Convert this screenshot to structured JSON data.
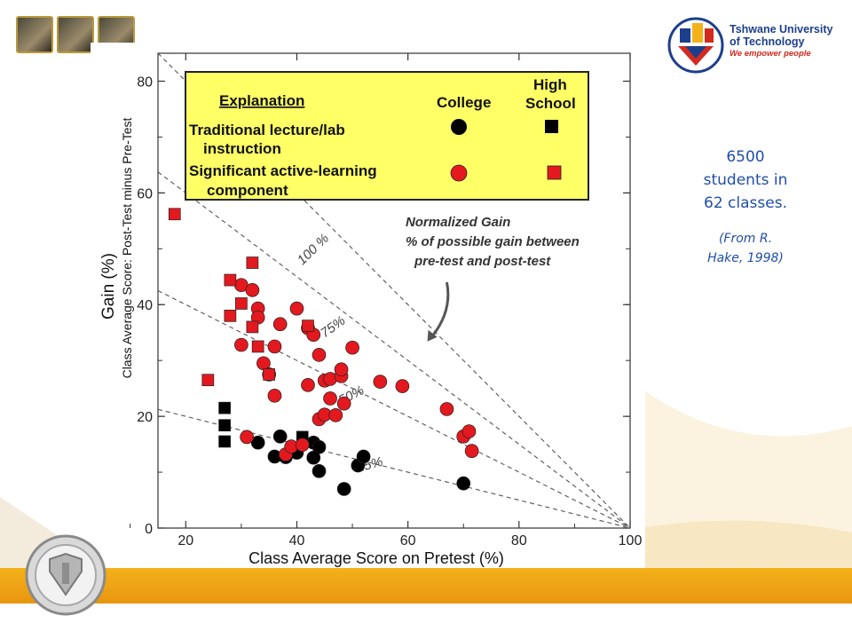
{
  "slide": {
    "logo": {
      "line1": "Tshwane University",
      "line2": "of Technology",
      "tagline": "We empower people"
    },
    "side_note": {
      "line1": "6500",
      "line2": "students in",
      "line3": "62 classes.",
      "cite1": "(From R.",
      "cite2": "Hake, 1998)"
    },
    "colors": {
      "brand_blue": "#1f4fa8",
      "footer_gold": "#f4b21a",
      "legend_bg": "#ffff66",
      "series_red": "#e3191f",
      "series_black": "#000000"
    }
  },
  "chart_data": {
    "type": "scatter",
    "xlabel": "Class Average Score on Pretest (%)",
    "ylabel": "Gain (%)",
    "ylabel2": "Class Average Score: Post-Test minus Pre-Test",
    "xlim": [
      15,
      100
    ],
    "ylim": [
      0,
      85
    ],
    "xticks": [
      20,
      40,
      60,
      80,
      100
    ],
    "yticks": [
      0,
      20,
      40,
      60,
      80
    ],
    "legend": {
      "title": "Explanation",
      "col_college": "College",
      "col_hs1": "High",
      "col_hs2": "School",
      "row1a": "Traditional lecture/lab",
      "row1b": "instruction",
      "row2a": "Significant active-learning",
      "row2b": "component"
    },
    "annotation": {
      "line1": "Normalized Gain",
      "line2": "% of possible gain between",
      "line3": "pre-test and post-test"
    },
    "gain_lines": [
      {
        "label": "100 %",
        "g": 1.0
      },
      {
        "label": "75%",
        "g": 0.75
      },
      {
        "label": "50%",
        "g": 0.5
      },
      {
        "label": "25%",
        "g": 0.25
      }
    ],
    "series": [
      {
        "name": "Traditional lecture/lab instruction - College",
        "marker": "circle",
        "color": "#000000",
        "points": [
          [
            33,
            15.3
          ],
          [
            36,
            12.8
          ],
          [
            37,
            16.4
          ],
          [
            38,
            12.7
          ],
          [
            40,
            13.5
          ],
          [
            43,
            15.3
          ],
          [
            44,
            14.5
          ],
          [
            43,
            12.6
          ],
          [
            44,
            10.2
          ],
          [
            48.5,
            7
          ],
          [
            51,
            11.2
          ],
          [
            52,
            12.8
          ],
          [
            70,
            8
          ]
        ]
      },
      {
        "name": "Traditional lecture/lab instruction - High School",
        "marker": "square",
        "color": "#000000",
        "points": [
          [
            27,
            21.5
          ],
          [
            27,
            18.4
          ],
          [
            27,
            15.5
          ],
          [
            41,
            16.3
          ]
        ]
      },
      {
        "name": "Significant active-learning component - College",
        "marker": "circle",
        "color": "#e3191f",
        "points": [
          [
            30,
            43.5
          ],
          [
            32,
            42.6
          ],
          [
            33,
            39.3
          ],
          [
            33,
            37.7
          ],
          [
            30,
            32.8
          ],
          [
            34,
            29.5
          ],
          [
            35,
            27.5
          ],
          [
            37,
            36.5
          ],
          [
            40,
            39.3
          ],
          [
            42,
            35.8
          ],
          [
            43,
            34.6
          ],
          [
            44,
            31
          ],
          [
            36,
            32.5
          ],
          [
            36,
            23.7
          ],
          [
            42,
            25.6
          ],
          [
            45,
            26.4
          ],
          [
            46,
            26.7
          ],
          [
            48,
            27.2
          ],
          [
            48,
            28.4
          ],
          [
            50,
            32.3
          ],
          [
            46,
            23.2
          ],
          [
            44,
            19.5
          ],
          [
            45,
            20.3
          ],
          [
            47,
            20.2
          ],
          [
            48.5,
            22.3
          ],
          [
            55,
            26.2
          ],
          [
            59,
            25.4
          ],
          [
            67,
            21.3
          ],
          [
            70,
            16.4
          ],
          [
            71,
            17.3
          ],
          [
            71.5,
            13.8
          ],
          [
            31,
            16.3
          ],
          [
            38,
            13.2
          ],
          [
            39,
            14.6
          ],
          [
            41,
            14.9
          ]
        ]
      },
      {
        "name": "Significant active-learning component - High School",
        "marker": "square",
        "color": "#e3191f",
        "points": [
          [
            18,
            56.2
          ],
          [
            28,
            44.4
          ],
          [
            28,
            38
          ],
          [
            30,
            40.2
          ],
          [
            32,
            47.5
          ],
          [
            32,
            36
          ],
          [
            33,
            32.5
          ],
          [
            35,
            27.5
          ],
          [
            24,
            26.5
          ],
          [
            42,
            36.2
          ]
        ]
      }
    ]
  }
}
